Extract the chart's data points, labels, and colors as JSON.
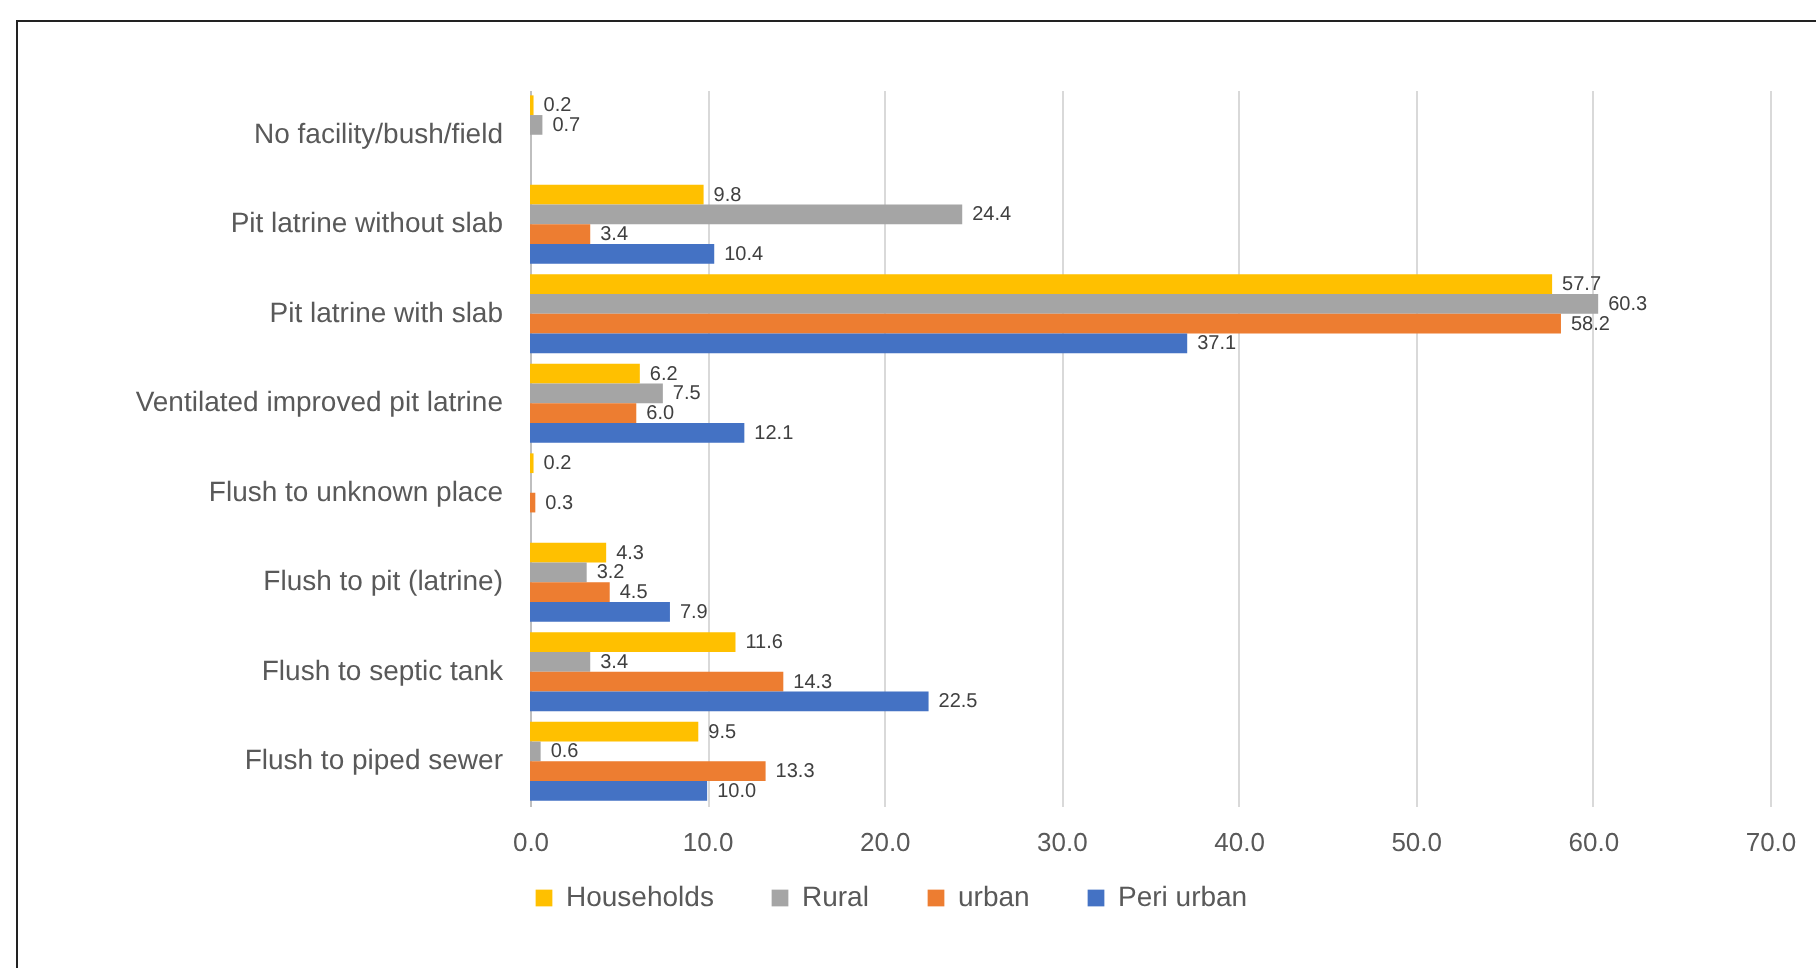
{
  "chart_data": {
    "type": "bar",
    "orientation": "horizontal",
    "categories": [
      "No facility/bush/field",
      "Pit latrine without slab",
      "Pit latrine with slab",
      "Ventilated improved pit latrine",
      "Flush to unknown place",
      "Flush to pit (latrine)",
      "Flush to septic tank",
      "Flush to piped sewer"
    ],
    "series": [
      {
        "name": "Households",
        "color": "#ffc000",
        "values": [
          0.2,
          9.8,
          57.7,
          6.2,
          0.2,
          4.3,
          11.6,
          9.5
        ],
        "value_labels": [
          "0.2",
          "9.8",
          "57.7",
          "6.2",
          "0.2",
          "4.3",
          "11.6",
          "9.5"
        ]
      },
      {
        "name": "Rural",
        "color": "#a5a5a5",
        "values": [
          0.7,
          24.4,
          60.3,
          7.5,
          null,
          3.2,
          3.4,
          0.6
        ],
        "value_labels": [
          "0.7",
          "24.4",
          "60.3",
          "7.5",
          null,
          "3.2",
          "3.4",
          "0.6"
        ]
      },
      {
        "name": "urban",
        "color": "#ed7d31",
        "values": [
          null,
          3.4,
          58.2,
          6.0,
          0.3,
          4.5,
          14.3,
          13.3
        ],
        "value_labels": [
          null,
          "3.4",
          "58.2",
          "6.0",
          "0.3",
          "4.5",
          "14.3",
          "13.3"
        ]
      },
      {
        "name": "Peri urban",
        "color": "#4472c4",
        "values": [
          null,
          10.4,
          37.1,
          12.1,
          null,
          7.9,
          22.5,
          10.0
        ],
        "value_labels": [
          null,
          "10.4",
          "37.1",
          "12.1",
          null,
          "7.9",
          "22.5",
          "10.0"
        ]
      }
    ],
    "xlim": [
      0,
      70
    ],
    "xticks": [
      {
        "value": 0,
        "label": "0.0"
      },
      {
        "value": 10,
        "label": "10.0"
      },
      {
        "value": 20,
        "label": "20.0"
      },
      {
        "value": 30,
        "label": "30.0"
      },
      {
        "value": 40,
        "label": "40.0"
      },
      {
        "value": 50,
        "label": "50.0"
      },
      {
        "value": 60,
        "label": "60.0"
      },
      {
        "value": 70,
        "label": "70.0"
      }
    ],
    "grid": "x",
    "legend": "bottom"
  }
}
